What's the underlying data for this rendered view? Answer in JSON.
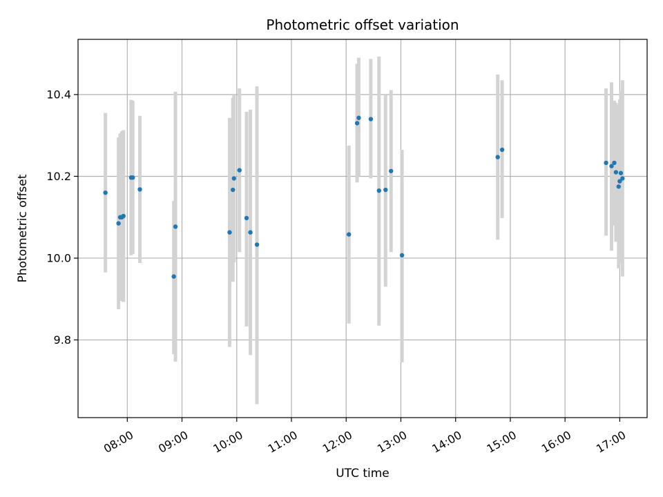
{
  "chart_data": {
    "type": "scatter",
    "title": "Photometric offset variation",
    "xlabel": "UTC time",
    "ylabel": "Photometric offset",
    "x_unit": "UTC hour",
    "xlim": [
      7.1,
      17.5
    ],
    "ylim": [
      9.61,
      10.535
    ],
    "grid": true,
    "x_ticks": [
      {
        "value": 8,
        "label": "08:00"
      },
      {
        "value": 9,
        "label": "09:00"
      },
      {
        "value": 10,
        "label": "10:00"
      },
      {
        "value": 11,
        "label": "11:00"
      },
      {
        "value": 12,
        "label": "12:00"
      },
      {
        "value": 13,
        "label": "13:00"
      },
      {
        "value": 14,
        "label": "14:00"
      },
      {
        "value": 15,
        "label": "15:00"
      },
      {
        "value": 16,
        "label": "16:00"
      },
      {
        "value": 17,
        "label": "17:00"
      }
    ],
    "y_ticks": [
      {
        "value": 9.8,
        "label": "9.8"
      },
      {
        "value": 10.0,
        "label": "10.0"
      },
      {
        "value": 10.2,
        "label": "10.2"
      },
      {
        "value": 10.4,
        "label": "10.4"
      }
    ],
    "colors": {
      "point": "#1f77b4",
      "errorbar": "#d3d3d3",
      "grid": "#b0b0b0"
    },
    "points": [
      {
        "x": 7.6,
        "y": 10.16,
        "low": 9.965,
        "high": 10.355
      },
      {
        "x": 7.84,
        "y": 10.085,
        "low": 9.875,
        "high": 10.295
      },
      {
        "x": 7.87,
        "y": 10.1,
        "low": 9.895,
        "high": 10.305
      },
      {
        "x": 7.9,
        "y": 10.1,
        "low": 9.9,
        "high": 10.31
      },
      {
        "x": 7.93,
        "y": 10.103,
        "low": 9.893,
        "high": 10.313
      },
      {
        "x": 8.07,
        "y": 10.197,
        "low": 10.007,
        "high": 10.387
      },
      {
        "x": 8.1,
        "y": 10.197,
        "low": 10.01,
        "high": 10.385
      },
      {
        "x": 8.23,
        "y": 10.168,
        "low": 9.988,
        "high": 10.348
      },
      {
        "x": 8.85,
        "y": 9.955,
        "low": 9.765,
        "high": 10.14
      },
      {
        "x": 8.88,
        "y": 10.077,
        "low": 9.747,
        "high": 10.407
      },
      {
        "x": 9.87,
        "y": 10.063,
        "low": 9.783,
        "high": 10.343
      },
      {
        "x": 9.93,
        "y": 10.167,
        "low": 9.942,
        "high": 10.392
      },
      {
        "x": 9.95,
        "y": 10.195,
        "low": 9.99,
        "high": 10.4
      },
      {
        "x": 10.05,
        "y": 10.215,
        "low": 10.015,
        "high": 10.415
      },
      {
        "x": 10.18,
        "y": 10.098,
        "low": 9.833,
        "high": 10.358
      },
      {
        "x": 10.25,
        "y": 10.063,
        "low": 9.763,
        "high": 10.363
      },
      {
        "x": 10.37,
        "y": 10.033,
        "low": 9.643,
        "high": 10.42
      },
      {
        "x": 12.05,
        "y": 10.058,
        "low": 9.84,
        "high": 10.275
      },
      {
        "x": 12.2,
        "y": 10.33,
        "low": 10.185,
        "high": 10.475
      },
      {
        "x": 12.23,
        "y": 10.343,
        "low": 10.2,
        "high": 10.49
      },
      {
        "x": 12.45,
        "y": 10.34,
        "low": 10.195,
        "high": 10.487
      },
      {
        "x": 12.6,
        "y": 10.165,
        "low": 9.835,
        "high": 10.493
      },
      {
        "x": 12.72,
        "y": 10.167,
        "low": 9.93,
        "high": 10.4
      },
      {
        "x": 12.82,
        "y": 10.213,
        "low": 10.015,
        "high": 10.411
      },
      {
        "x": 13.02,
        "y": 10.007,
        "low": 9.745,
        "high": 10.265
      },
      {
        "x": 14.77,
        "y": 10.247,
        "low": 10.045,
        "high": 10.449
      },
      {
        "x": 14.85,
        "y": 10.265,
        "low": 10.098,
        "high": 10.435
      },
      {
        "x": 16.75,
        "y": 10.233,
        "low": 10.055,
        "high": 10.415
      },
      {
        "x": 16.85,
        "y": 10.225,
        "low": 10.018,
        "high": 10.43
      },
      {
        "x": 16.9,
        "y": 10.233,
        "low": 10.08,
        "high": 10.385
      },
      {
        "x": 16.93,
        "y": 10.21,
        "low": 10.04,
        "high": 10.38
      },
      {
        "x": 16.98,
        "y": 10.175,
        "low": 9.975,
        "high": 10.375
      },
      {
        "x": 17.0,
        "y": 10.188,
        "low": 9.988,
        "high": 10.388
      },
      {
        "x": 17.02,
        "y": 10.208,
        "low": 10.008,
        "high": 10.408
      },
      {
        "x": 17.05,
        "y": 10.195,
        "low": 9.955,
        "high": 10.435
      }
    ]
  }
}
